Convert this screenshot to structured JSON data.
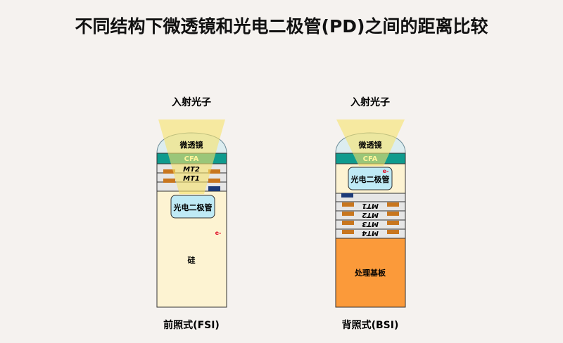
{
  "title": "不同结构下微透镜和光电二极管(PD)之间的距离比较",
  "fsi": {
    "photon_label": "入射光子",
    "lens": "微透镜",
    "cfa": "CFA",
    "mt2": "MT2",
    "mt1": "MT1",
    "pd": "光电二极管",
    "electron": "e-",
    "silicon": "硅",
    "caption": "前照式(FSI)"
  },
  "bsi": {
    "photon_label": "入射光子",
    "lens": "微透镜",
    "cfa": "CFA",
    "pd": "光电二极管",
    "electron": "e-",
    "mt1": "MT1",
    "mt2": "MT2",
    "mt3": "MT3",
    "mt4": "MT4",
    "substrate": "处理基板",
    "caption": "背照式(BSI)"
  },
  "colors": {
    "light": "#f7e36a",
    "cfa": "#0f9b8e",
    "silicon": "#fdf3d2",
    "pd": "#bfeaf5",
    "substrate": "#fb9a3a",
    "metal": "#c8761e",
    "layer": "#e6e6e6",
    "via": "#1c3a78"
  }
}
